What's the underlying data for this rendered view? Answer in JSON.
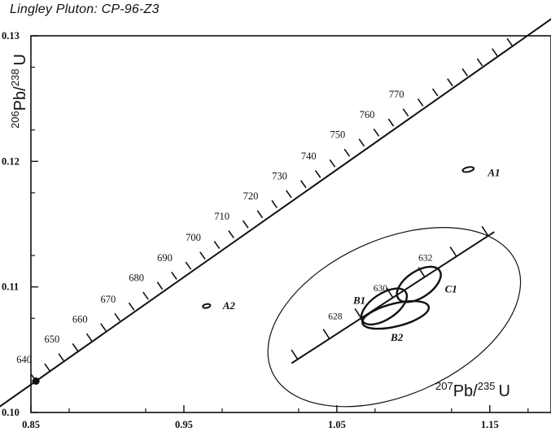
{
  "chart_data": {
    "type": "scatter",
    "title": "Lingley Pluton:  CP-96-Z3",
    "xlabel": {
      "base": "Pb/",
      "sup1": "207",
      "sup2": "235",
      "unit": "U"
    },
    "ylabel": {
      "base": "Pb/",
      "sup1": "206",
      "sup2": "238",
      "unit": "U"
    },
    "xlim": [
      0.85,
      1.19
    ],
    "ylim": [
      0.1,
      0.13
    ],
    "x_ticks": [
      {
        "v": 0.85,
        "label": "0.85"
      },
      {
        "v": 0.95,
        "label": "0.95"
      },
      {
        "v": 1.05,
        "label": "1.05"
      },
      {
        "v": 1.15,
        "label": "1.15"
      }
    ],
    "y_ticks": [
      {
        "v": 0.1,
        "label": "0.10"
      },
      {
        "v": 0.11,
        "label": "0.11"
      },
      {
        "v": 0.12,
        "label": "0.12"
      },
      {
        "v": 0.13,
        "label": "0.13"
      }
    ],
    "concordia": {
      "points": [
        [
          0.8533,
          0.1025
        ],
        [
          0.8715,
          0.1041
        ],
        [
          0.8898,
          0.1057
        ],
        [
          0.9082,
          0.1073
        ],
        [
          0.9267,
          0.109
        ],
        [
          0.9453,
          0.1106
        ],
        [
          0.9639,
          0.1122
        ],
        [
          0.9826,
          0.1139
        ],
        [
          1.0014,
          0.1155
        ],
        [
          1.0203,
          0.1171
        ],
        [
          1.0393,
          0.1187
        ],
        [
          1.0583,
          0.1204
        ],
        [
          1.0775,
          0.122
        ],
        [
          1.0967,
          0.1236
        ],
        [
          1.116,
          0.1252
        ],
        [
          1.1354,
          0.1268
        ],
        [
          1.1549,
          0.1284
        ],
        [
          1.1745,
          0.13
        ]
      ],
      "age_labels": [
        {
          "age": 640,
          "x": 0.8533,
          "y": 0.1025
        },
        {
          "age": 650,
          "x": 0.8715,
          "y": 0.1041
        },
        {
          "age": 660,
          "x": 0.8898,
          "y": 0.1057
        },
        {
          "age": 670,
          "x": 0.9082,
          "y": 0.1073
        },
        {
          "age": 680,
          "x": 0.9267,
          "y": 0.109
        },
        {
          "age": 690,
          "x": 0.9453,
          "y": 0.1106
        },
        {
          "age": 700,
          "x": 0.9639,
          "y": 0.1122
        },
        {
          "age": 710,
          "x": 0.9826,
          "y": 0.1139
        },
        {
          "age": 720,
          "x": 1.0014,
          "y": 0.1155
        },
        {
          "age": 730,
          "x": 1.0203,
          "y": 0.1171
        },
        {
          "age": 740,
          "x": 1.0393,
          "y": 0.1187
        },
        {
          "age": 750,
          "x": 1.0583,
          "y": 0.1204
        },
        {
          "age": 760,
          "x": 1.0775,
          "y": 0.122
        },
        {
          "age": 770,
          "x": 1.0967,
          "y": 0.1236
        }
      ]
    },
    "inset_concordia": {
      "start": [
        1.0204,
        0.10392
      ],
      "end": [
        1.1529,
        0.11438
      ],
      "age_labels": [
        {
          "age": 628,
          "x": 1.0534,
          "y": 0.10664
        },
        {
          "age": 630,
          "x": 1.0829,
          "y": 0.10887
        },
        {
          "age": 632,
          "x": 1.1124,
          "y": 0.1113
        }
      ]
    },
    "outer_error_ellipse": {
      "cx": 1.0875,
      "cy": 0.1076,
      "rx": 0.0875,
      "ry": 0.0062,
      "angle_deg": -24
    },
    "analyses": [
      {
        "label": "A1",
        "x": 1.1359,
        "y": 0.11935,
        "rx": 0.0037,
        "ry": 0.00018,
        "angle_deg": -12
      },
      {
        "label": "A2",
        "x": 0.9648,
        "y": 0.10848,
        "rx": 0.0025,
        "ry": 0.00015,
        "angle_deg": -12
      },
      {
        "label": "B1",
        "x": 1.0809,
        "y": 0.10844,
        "rx": 0.017,
        "ry": 0.00102,
        "angle_deg": -34
      },
      {
        "label": "B2",
        "x": 1.0884,
        "y": 0.10777,
        "rx": 0.0223,
        "ry": 0.00091,
        "angle_deg": -14
      },
      {
        "label": "C1",
        "x": 1.1036,
        "y": 0.1102,
        "rx": 0.0163,
        "ry": 0.00104,
        "angle_deg": -34
      }
    ],
    "endpoint_marker": {
      "x": 0.8533,
      "y": 0.1025
    }
  }
}
